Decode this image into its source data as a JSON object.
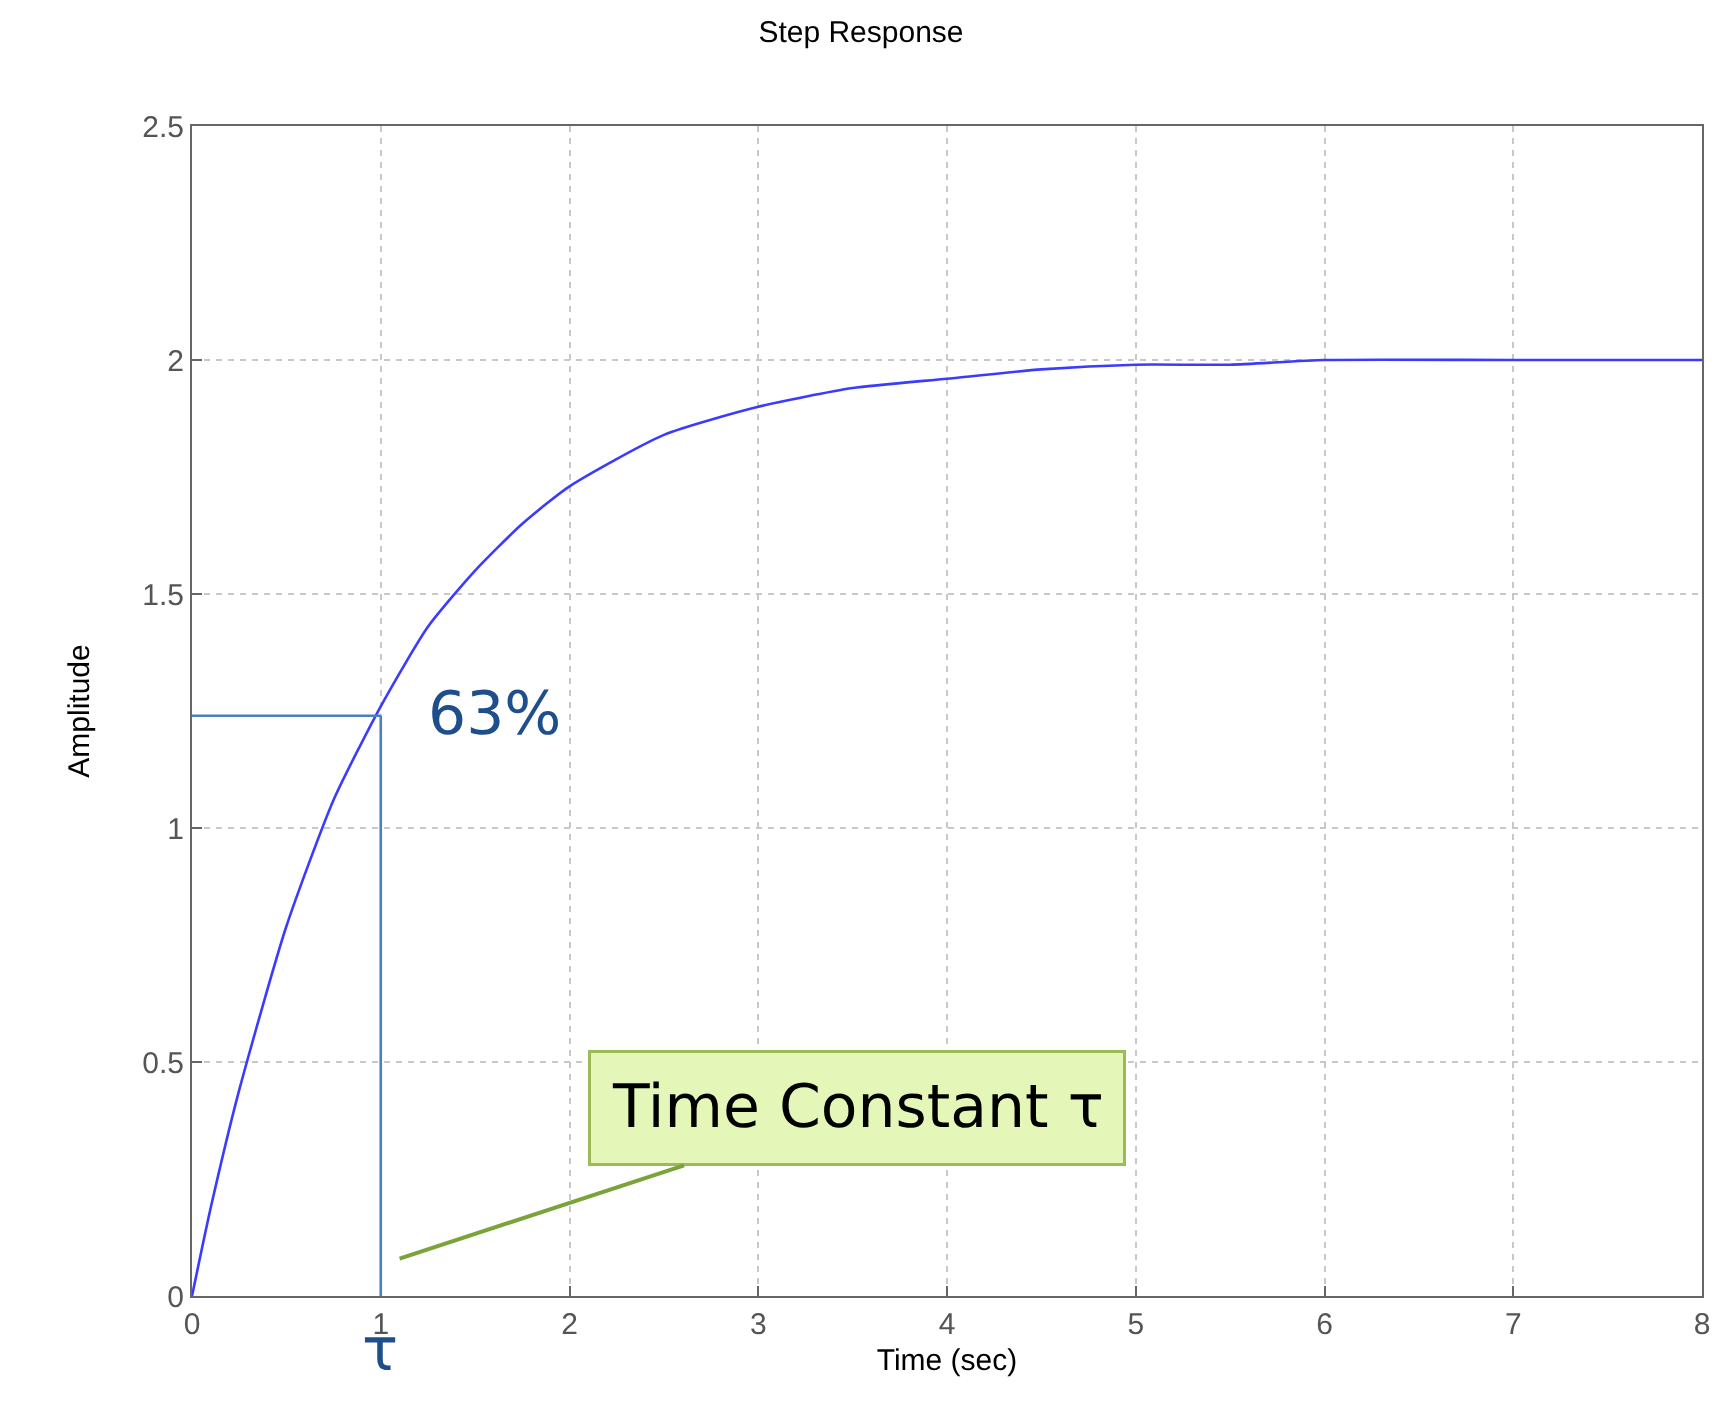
{
  "chart_data": {
    "type": "line",
    "title": "Step Response",
    "xlabel": "Time (sec)",
    "ylabel": "Amplitude",
    "x": [
      0,
      0.1,
      0.25,
      0.5,
      0.75,
      1,
      1.25,
      1.5,
      1.75,
      2,
      2.5,
      3,
      3.5,
      4,
      4.5,
      5,
      5.5,
      6,
      7,
      8
    ],
    "series": [
      {
        "color": "#3b3bff",
        "values": [
          0,
          0.19,
          0.44,
          0.79,
          1.06,
          1.26,
          1.43,
          1.55,
          1.65,
          1.73,
          1.84,
          1.9,
          1.94,
          1.96,
          1.98,
          1.99,
          1.99,
          2,
          2,
          2
        ]
      }
    ],
    "xlim": [
      0,
      8
    ],
    "xticks": [
      0,
      1,
      2,
      3,
      4,
      5,
      6,
      7,
      8
    ],
    "ylim": [
      0,
      2.5
    ],
    "yticks": [
      0,
      0.5,
      1,
      1.5,
      2,
      2.5
    ],
    "grid": true,
    "line_style": "solid",
    "marker": "none",
    "ref_lines": [
      {
        "axis": "y",
        "value": 1.24,
        "color": "#4a7fc1"
      },
      {
        "axis": "x",
        "value": 1,
        "label": "τ",
        "color": "#4a7fc1"
      }
    ],
    "annotations": [
      {
        "text": "63%",
        "x": 1,
        "y": 1.24
      },
      "Time Constant τ"
    ]
  }
}
